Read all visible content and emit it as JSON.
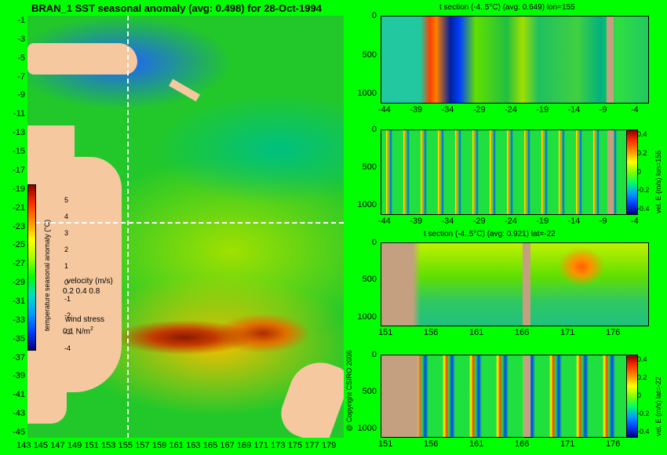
{
  "title": "BRAN_1 SST seasonal anomaly (avg: 0.498) for 28-Oct-1994",
  "copyright": "@ Copyright CSIRO 2006",
  "map": {
    "lat_ticks": [
      "-1",
      "-3",
      "-5",
      "-7",
      "-9",
      "-11",
      "-13",
      "-15",
      "-17",
      "-19",
      "-21",
      "-23",
      "-25",
      "-27",
      "-29",
      "-31",
      "-33",
      "-35",
      "-37",
      "-39",
      "-41",
      "-43",
      "-45"
    ],
    "lon_ticks": [
      "143",
      "145",
      "147",
      "149",
      "151",
      "153",
      "155",
      "157",
      "159",
      "161",
      "163",
      "165",
      "167",
      "169",
      "171",
      "173",
      "175",
      "177",
      "179"
    ],
    "colorbar": {
      "label": "temperature seasonal anomaly (°C)",
      "ticks": [
        "5",
        "4",
        "3",
        "2",
        "1",
        "0",
        "-1",
        "-2",
        "-3",
        "-4"
      ]
    },
    "velocity_label": "velocity (m/s)",
    "velocity_scale": "0.2 0.4 0.8",
    "wind_label": "wind stress",
    "wind_scale": "0.1 N/m",
    "wind_unit_sup": "2"
  },
  "panels": [
    {
      "title": "t section (-4..5°C) (avg: 0.649) lon=155",
      "yticks": [
        "0",
        "500",
        "1000"
      ],
      "xticks": [
        "-44",
        "-39",
        "-34",
        "-29",
        "-24",
        "-19",
        "-14",
        "-9",
        "-4"
      ]
    },
    {
      "title": "",
      "yticks": [
        "0",
        "500",
        "1000"
      ],
      "xticks": [
        "-44",
        "-39",
        "-34",
        "-29",
        "-24",
        "-19",
        "-14",
        "-9",
        "-4"
      ],
      "colorbar_label": "vel. E (m/s) lon=155",
      "colorbar_ticks": [
        "0.4",
        "0.2",
        "0",
        "-0.2",
        "-0.4"
      ]
    },
    {
      "title": "t section (-4..5°C) (avg: 0.921) lat=-22",
      "yticks": [
        "0",
        "500",
        "1000"
      ],
      "xticks": [
        "151",
        "156",
        "161",
        "166",
        "171",
        "176"
      ]
    },
    {
      "title": "",
      "yticks": [
        "0",
        "500",
        "1000"
      ],
      "xticks": [
        "151",
        "156",
        "161",
        "166",
        "171",
        "176"
      ],
      "colorbar_label": "vel. E (m/s) lat=-22",
      "colorbar_ticks": [
        "0.4",
        "0.2",
        "0",
        "-0.2",
        "-0.4"
      ]
    }
  ],
  "chart_data": [
    {
      "type": "heatmap",
      "title": "BRAN_1 SST seasonal anomaly (avg: 0.498) for 28-Oct-1994",
      "x": [
        143,
        145,
        147,
        149,
        151,
        153,
        155,
        157,
        159,
        161,
        163,
        165,
        167,
        169,
        171,
        173,
        175,
        177,
        179
      ],
      "y": [
        -1,
        -3,
        -5,
        -7,
        -9,
        -11,
        -13,
        -15,
        -17,
        -19,
        -21,
        -23,
        -25,
        -27,
        -29,
        -31,
        -33,
        -35,
        -37,
        -39,
        -41,
        -43,
        -45
      ],
      "colorbar": "temperature seasonal anomaly (°C)",
      "zlim": [
        -4,
        5
      ],
      "avg": 0.498
    },
    {
      "type": "heatmap",
      "title": "t section (-4..5°C) (avg: 0.649) lon=155",
      "x_range": [
        -45,
        -1
      ],
      "y_range": [
        0,
        1050
      ],
      "avg": 0.649
    },
    {
      "type": "heatmap",
      "title": "",
      "colorbar": "vel. E (m/s) lon=155",
      "zlim": [
        -0.4,
        0.4
      ],
      "x_range": [
        -45,
        -1
      ],
      "y_range": [
        0,
        1050
      ]
    },
    {
      "type": "heatmap",
      "title": "t section (-4..5°C) (avg: 0.921) lat=-22",
      "x_range": [
        150,
        180
      ],
      "y_range": [
        0,
        1050
      ],
      "avg": 0.921
    },
    {
      "type": "heatmap",
      "title": "",
      "colorbar": "vel. E (m/s) lat=-22",
      "zlim": [
        -0.4,
        0.4
      ],
      "x_range": [
        150,
        180
      ],
      "y_range": [
        0,
        1050
      ]
    }
  ]
}
